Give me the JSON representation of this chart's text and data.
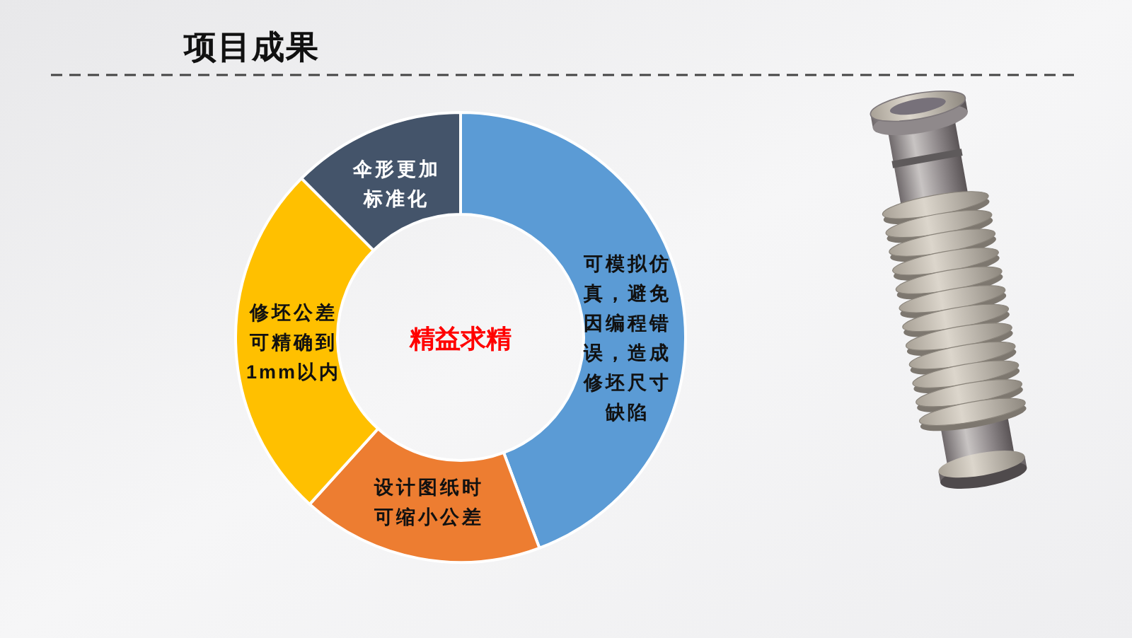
{
  "chart_data": {
    "type": "donut",
    "title": "项目成果",
    "categories": [
      "可模拟仿真，避免因编程错误，造成修坯尺寸缺陷",
      "设计图纸时可缩小公差",
      "修坯公差可精确到1mm以内",
      "伞形更加标准化"
    ],
    "values": [
      44.3,
      17.4,
      25.8,
      12.5
    ],
    "colors": [
      "#5b9bd5",
      "#ed7d31",
      "#ffc000",
      "#44546a"
    ],
    "annotations": [
      "精益求精"
    ]
  }
}
